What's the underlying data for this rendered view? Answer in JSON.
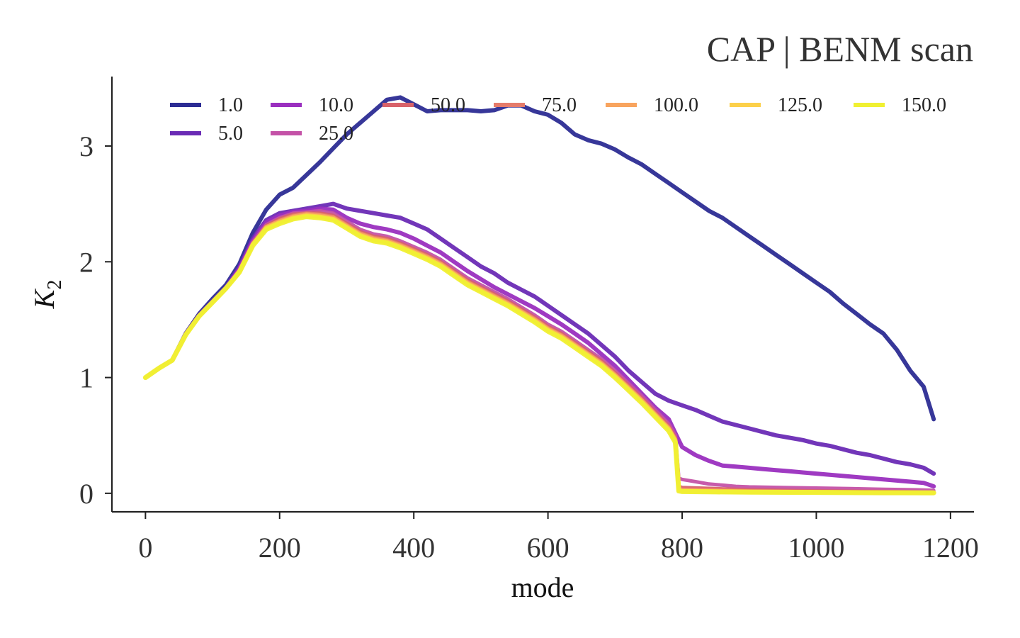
{
  "chart_data": {
    "type": "line",
    "title": "CAP | BENM scan",
    "xlabel": "mode",
    "ylabel": "K",
    "ylabel_subscript": "2",
    "xlim": [
      -50,
      1235
    ],
    "ylim": [
      -0.16,
      3.6
    ],
    "xticks": [
      0,
      200,
      400,
      600,
      800,
      1000,
      1200
    ],
    "yticks": [
      0,
      1,
      2,
      3
    ],
    "grid": false,
    "legend_position": "top",
    "legend_columns": 7,
    "series": [
      {
        "name": "1.0",
        "color": "#2c2c94",
        "x": [
          0,
          20,
          40,
          60,
          80,
          100,
          120,
          140,
          160,
          180,
          200,
          220,
          240,
          260,
          280,
          300,
          320,
          340,
          360,
          380,
          400,
          420,
          440,
          460,
          480,
          500,
          520,
          540,
          560,
          580,
          600,
          620,
          640,
          660,
          680,
          700,
          720,
          740,
          760,
          780,
          800,
          820,
          840,
          860,
          880,
          900,
          920,
          940,
          960,
          980,
          1000,
          1020,
          1040,
          1060,
          1080,
          1100,
          1120,
          1140,
          1160,
          1175
        ],
        "values": [
          1.0,
          1.08,
          1.15,
          1.38,
          1.55,
          1.68,
          1.8,
          1.98,
          2.25,
          2.45,
          2.58,
          2.64,
          2.75,
          2.86,
          2.98,
          3.1,
          3.2,
          3.3,
          3.4,
          3.42,
          3.36,
          3.3,
          3.31,
          3.31,
          3.31,
          3.3,
          3.31,
          3.35,
          3.35,
          3.3,
          3.27,
          3.2,
          3.1,
          3.05,
          3.02,
          2.97,
          2.9,
          2.84,
          2.76,
          2.68,
          2.6,
          2.52,
          2.44,
          2.38,
          2.3,
          2.22,
          2.14,
          2.06,
          1.98,
          1.9,
          1.82,
          1.74,
          1.64,
          1.55,
          1.46,
          1.38,
          1.24,
          1.06,
          0.92,
          0.64
        ]
      },
      {
        "name": "5.0",
        "color": "#6a2bb5",
        "x": [
          0,
          20,
          40,
          60,
          80,
          100,
          120,
          140,
          160,
          180,
          200,
          220,
          240,
          260,
          280,
          300,
          320,
          340,
          360,
          380,
          400,
          420,
          440,
          460,
          480,
          500,
          520,
          540,
          560,
          580,
          600,
          620,
          640,
          660,
          680,
          700,
          720,
          740,
          760,
          780,
          800,
          820,
          840,
          860,
          880,
          900,
          920,
          940,
          960,
          980,
          1000,
          1020,
          1040,
          1060,
          1080,
          1100,
          1120,
          1140,
          1160,
          1175
        ],
        "values": [
          1.0,
          1.08,
          1.15,
          1.38,
          1.54,
          1.66,
          1.78,
          1.95,
          2.2,
          2.36,
          2.42,
          2.44,
          2.46,
          2.48,
          2.5,
          2.46,
          2.44,
          2.42,
          2.4,
          2.38,
          2.33,
          2.28,
          2.2,
          2.12,
          2.04,
          1.96,
          1.9,
          1.82,
          1.76,
          1.7,
          1.62,
          1.54,
          1.46,
          1.38,
          1.28,
          1.18,
          1.06,
          0.96,
          0.86,
          0.8,
          0.76,
          0.72,
          0.67,
          0.62,
          0.59,
          0.56,
          0.53,
          0.5,
          0.48,
          0.46,
          0.43,
          0.41,
          0.38,
          0.35,
          0.33,
          0.3,
          0.27,
          0.25,
          0.22,
          0.17
        ]
      },
      {
        "name": "10.0",
        "color": "#9a2fbf",
        "x": [
          0,
          20,
          40,
          60,
          80,
          100,
          120,
          140,
          160,
          180,
          200,
          220,
          240,
          260,
          280,
          300,
          320,
          340,
          360,
          380,
          400,
          420,
          440,
          460,
          480,
          500,
          520,
          540,
          560,
          580,
          600,
          620,
          640,
          660,
          680,
          700,
          720,
          740,
          760,
          780,
          790,
          800,
          820,
          840,
          860,
          880,
          900,
          920,
          940,
          960,
          980,
          1000,
          1020,
          1040,
          1060,
          1080,
          1100,
          1120,
          1140,
          1160,
          1175
        ],
        "values": [
          1.0,
          1.08,
          1.15,
          1.37,
          1.53,
          1.65,
          1.77,
          1.94,
          2.18,
          2.34,
          2.4,
          2.43,
          2.44,
          2.46,
          2.45,
          2.38,
          2.33,
          2.3,
          2.28,
          2.25,
          2.2,
          2.14,
          2.08,
          2.0,
          1.92,
          1.85,
          1.78,
          1.72,
          1.66,
          1.6,
          1.53,
          1.46,
          1.38,
          1.3,
          1.2,
          1.1,
          0.98,
          0.86,
          0.74,
          0.64,
          0.52,
          0.4,
          0.33,
          0.28,
          0.24,
          0.23,
          0.22,
          0.21,
          0.2,
          0.19,
          0.18,
          0.17,
          0.16,
          0.15,
          0.14,
          0.13,
          0.12,
          0.11,
          0.1,
          0.09,
          0.06
        ]
      },
      {
        "name": "25.0",
        "color": "#c452a7",
        "x": [
          0,
          20,
          40,
          60,
          80,
          100,
          120,
          140,
          160,
          180,
          200,
          220,
          240,
          260,
          280,
          300,
          320,
          340,
          360,
          380,
          400,
          420,
          440,
          460,
          480,
          500,
          520,
          540,
          560,
          580,
          600,
          620,
          640,
          660,
          680,
          700,
          720,
          740,
          760,
          780,
          790,
          795,
          800,
          820,
          840,
          860,
          880,
          900,
          950,
          1000,
          1050,
          1100,
          1150,
          1175
        ],
        "values": [
          1.0,
          1.08,
          1.15,
          1.37,
          1.53,
          1.65,
          1.77,
          1.93,
          2.17,
          2.32,
          2.38,
          2.42,
          2.43,
          2.44,
          2.42,
          2.35,
          2.28,
          2.24,
          2.22,
          2.18,
          2.13,
          2.08,
          2.02,
          1.94,
          1.86,
          1.8,
          1.74,
          1.68,
          1.61,
          1.54,
          1.46,
          1.4,
          1.32,
          1.24,
          1.16,
          1.06,
          0.95,
          0.84,
          0.72,
          0.6,
          0.5,
          0.13,
          0.12,
          0.1,
          0.08,
          0.07,
          0.06,
          0.055,
          0.05,
          0.045,
          0.04,
          0.035,
          0.03,
          0.025
        ]
      },
      {
        "name": "50.0",
        "color": "#d8626a",
        "x": [
          0,
          20,
          40,
          60,
          80,
          100,
          120,
          140,
          160,
          180,
          200,
          220,
          240,
          260,
          280,
          300,
          320,
          340,
          360,
          380,
          400,
          420,
          440,
          460,
          480,
          500,
          520,
          540,
          560,
          580,
          600,
          620,
          640,
          660,
          680,
          700,
          720,
          740,
          760,
          780,
          790,
          795,
          800,
          850,
          900,
          1000,
          1100,
          1175
        ],
        "values": [
          1.0,
          1.08,
          1.15,
          1.37,
          1.53,
          1.65,
          1.77,
          1.92,
          2.16,
          2.31,
          2.37,
          2.41,
          2.42,
          2.42,
          2.4,
          2.33,
          2.26,
          2.22,
          2.2,
          2.16,
          2.11,
          2.06,
          2.0,
          1.92,
          1.84,
          1.78,
          1.72,
          1.66,
          1.59,
          1.52,
          1.44,
          1.38,
          1.3,
          1.22,
          1.14,
          1.04,
          0.93,
          0.82,
          0.7,
          0.58,
          0.48,
          0.06,
          0.05,
          0.04,
          0.03,
          0.02,
          0.015,
          0.01
        ]
      },
      {
        "name": "75.0",
        "color": "#e57b6a",
        "x": [
          0,
          20,
          40,
          60,
          80,
          100,
          120,
          140,
          160,
          180,
          200,
          220,
          240,
          260,
          280,
          300,
          320,
          340,
          360,
          380,
          400,
          420,
          440,
          460,
          480,
          500,
          520,
          540,
          560,
          580,
          600,
          620,
          640,
          660,
          680,
          700,
          720,
          740,
          760,
          780,
          790,
          795,
          800,
          850,
          900,
          1000,
          1100,
          1175
        ],
        "values": [
          1.0,
          1.08,
          1.15,
          1.37,
          1.53,
          1.65,
          1.77,
          1.92,
          2.16,
          2.3,
          2.36,
          2.4,
          2.42,
          2.41,
          2.39,
          2.32,
          2.25,
          2.21,
          2.19,
          2.15,
          2.1,
          2.05,
          1.99,
          1.91,
          1.83,
          1.77,
          1.71,
          1.65,
          1.58,
          1.51,
          1.43,
          1.37,
          1.29,
          1.21,
          1.13,
          1.03,
          0.92,
          0.81,
          0.69,
          0.57,
          0.47,
          0.04,
          0.035,
          0.03,
          0.02,
          0.015,
          0.01,
          0.008
        ]
      },
      {
        "name": "100.0",
        "color": "#f8a45e",
        "x": [
          0,
          20,
          40,
          60,
          80,
          100,
          120,
          140,
          160,
          180,
          200,
          220,
          240,
          260,
          280,
          300,
          320,
          340,
          360,
          380,
          400,
          420,
          440,
          460,
          480,
          500,
          520,
          540,
          560,
          580,
          600,
          620,
          640,
          660,
          680,
          700,
          720,
          740,
          760,
          780,
          790,
          795,
          800,
          850,
          900,
          1000,
          1100,
          1175
        ],
        "values": [
          1.0,
          1.08,
          1.15,
          1.37,
          1.53,
          1.65,
          1.77,
          1.92,
          2.15,
          2.3,
          2.35,
          2.39,
          2.41,
          2.4,
          2.38,
          2.31,
          2.24,
          2.2,
          2.18,
          2.14,
          2.09,
          2.04,
          1.98,
          1.9,
          1.82,
          1.76,
          1.7,
          1.64,
          1.57,
          1.5,
          1.42,
          1.36,
          1.28,
          1.2,
          1.12,
          1.02,
          0.91,
          0.8,
          0.68,
          0.56,
          0.46,
          0.03,
          0.025,
          0.02,
          0.015,
          0.01,
          0.008,
          0.006
        ]
      },
      {
        "name": "125.0",
        "color": "#fcd04a",
        "x": [
          0,
          20,
          40,
          60,
          80,
          100,
          120,
          140,
          160,
          180,
          200,
          220,
          240,
          260,
          280,
          300,
          320,
          340,
          360,
          380,
          400,
          420,
          440,
          460,
          480,
          500,
          520,
          540,
          560,
          580,
          600,
          620,
          640,
          660,
          680,
          700,
          720,
          740,
          760,
          780,
          790,
          795,
          800,
          850,
          900,
          1000,
          1100,
          1175
        ],
        "values": [
          1.0,
          1.08,
          1.15,
          1.37,
          1.53,
          1.65,
          1.77,
          1.91,
          2.15,
          2.29,
          2.34,
          2.38,
          2.4,
          2.39,
          2.37,
          2.3,
          2.23,
          2.19,
          2.17,
          2.13,
          2.08,
          2.03,
          1.97,
          1.89,
          1.81,
          1.75,
          1.69,
          1.63,
          1.56,
          1.49,
          1.41,
          1.35,
          1.27,
          1.19,
          1.11,
          1.01,
          0.9,
          0.79,
          0.67,
          0.55,
          0.45,
          0.025,
          0.02,
          0.015,
          0.01,
          0.008,
          0.006,
          0.005
        ]
      },
      {
        "name": "150.0",
        "color": "#f0f032",
        "x": [
          0,
          20,
          40,
          60,
          80,
          100,
          120,
          140,
          160,
          180,
          200,
          220,
          240,
          260,
          280,
          300,
          320,
          340,
          360,
          380,
          400,
          420,
          440,
          460,
          480,
          500,
          520,
          540,
          560,
          580,
          600,
          620,
          640,
          660,
          680,
          700,
          720,
          740,
          760,
          780,
          790,
          795,
          800,
          850,
          900,
          1000,
          1100,
          1175
        ],
        "values": [
          1.0,
          1.08,
          1.15,
          1.37,
          1.53,
          1.65,
          1.77,
          1.91,
          2.14,
          2.28,
          2.33,
          2.37,
          2.39,
          2.38,
          2.36,
          2.29,
          2.22,
          2.18,
          2.16,
          2.12,
          2.07,
          2.02,
          1.96,
          1.88,
          1.8,
          1.74,
          1.68,
          1.62,
          1.55,
          1.48,
          1.4,
          1.34,
          1.26,
          1.18,
          1.1,
          1.0,
          0.89,
          0.78,
          0.66,
          0.54,
          0.44,
          0.02,
          0.015,
          0.012,
          0.01,
          0.008,
          0.005,
          0.004
        ]
      }
    ]
  }
}
